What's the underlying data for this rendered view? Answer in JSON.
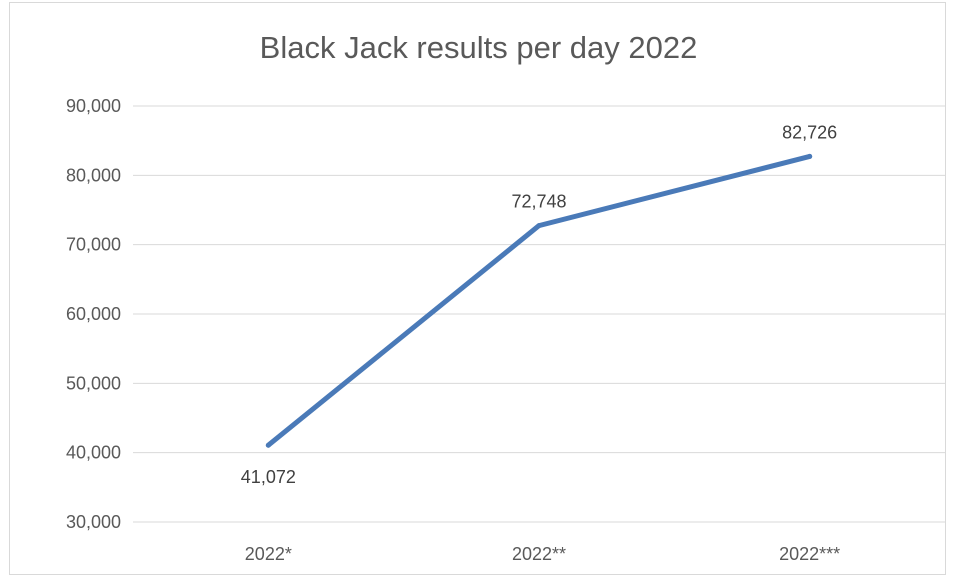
{
  "chart_data": {
    "type": "line",
    "title": "Black Jack results per day 2022",
    "categories": [
      "2022*",
      "2022**",
      "2022***"
    ],
    "series": [
      {
        "values": [
          41072,
          72748,
          82726
        ]
      }
    ],
    "data_labels": [
      "41,072",
      "72,748",
      "82,726"
    ],
    "y_tick_labels": [
      "30,000",
      "40,000",
      "50,000",
      "60,000",
      "70,000",
      "80,000",
      "90,000"
    ],
    "ylim": [
      30000,
      90000
    ],
    "y_tick_step": 10000,
    "grid": true,
    "legend": "none",
    "xlabel": "",
    "ylabel": "",
    "line_color": "#4a7ab8",
    "grid_color": "#d9d9d9"
  }
}
